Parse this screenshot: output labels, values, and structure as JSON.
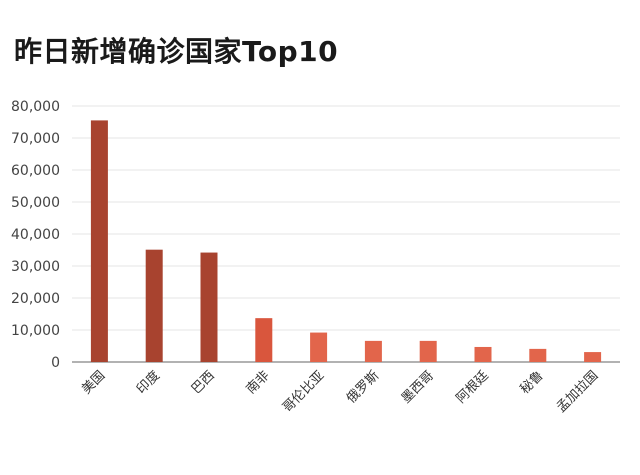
{
  "chart_data": {
    "type": "bar",
    "title": "昨日新增确诊国家Top10",
    "xlabel": "",
    "ylabel": "",
    "categories": [
      "美国",
      "印度",
      "巴西",
      "南非",
      "哥伦比亚",
      "俄罗斯",
      "墨西哥",
      "阿根廷",
      "秘鲁",
      "孟加拉国"
    ],
    "values": [
      75500,
      35100,
      34200,
      13700,
      9200,
      6600,
      6600,
      4700,
      4100,
      3100
    ],
    "ylim": [
      0,
      80000
    ],
    "yticks": [
      "0",
      "10,000",
      "20,000",
      "30,000",
      "40,000",
      "50,000",
      "60,000",
      "70,000",
      "80,000"
    ],
    "grid": true,
    "colors": [
      "#a8432f",
      "#a8432f",
      "#a8432f",
      "#d9563d",
      "#e2654b",
      "#e2654b",
      "#e2654b",
      "#e2654b",
      "#e2654b",
      "#e2654b"
    ],
    "gridline_color": "#e6e6e6",
    "axis_color": "#999999"
  }
}
